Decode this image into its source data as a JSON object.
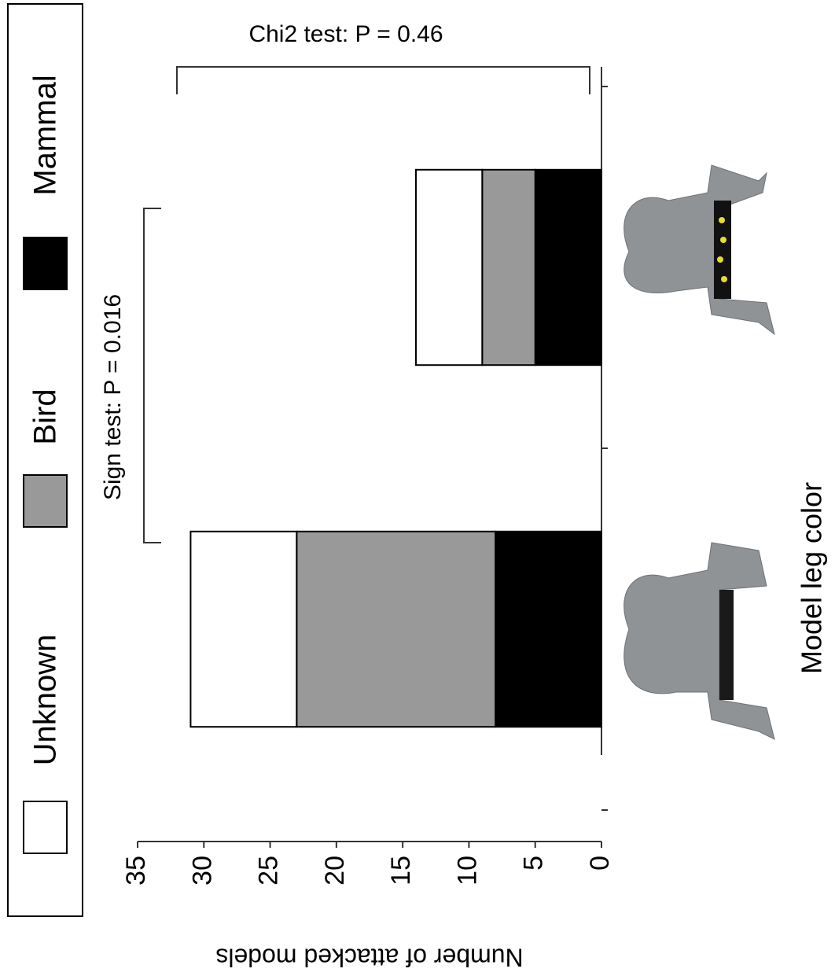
{
  "chart_data": {
    "type": "bar",
    "stacked": true,
    "xlabel": "Model leg color",
    "ylabel": "Number of attacked models",
    "annotations": [
      "Chi2 test: P = 0.46",
      "Sign test: P = 0.016"
    ],
    "categories": [
      null,
      null
    ],
    "series": [
      {
        "name": "Mammal",
        "color": "#000000",
        "values": [
          8,
          5
        ]
      },
      {
        "name": "Bird",
        "color": "#999999",
        "values": [
          15,
          4
        ]
      },
      {
        "name": "Unknown",
        "color": "#ffffff",
        "values": [
          8,
          5
        ]
      }
    ],
    "ylim": [
      0,
      35
    ],
    "yticks": [
      0,
      5,
      10,
      15,
      20,
      25,
      30,
      35
    ]
  }
}
